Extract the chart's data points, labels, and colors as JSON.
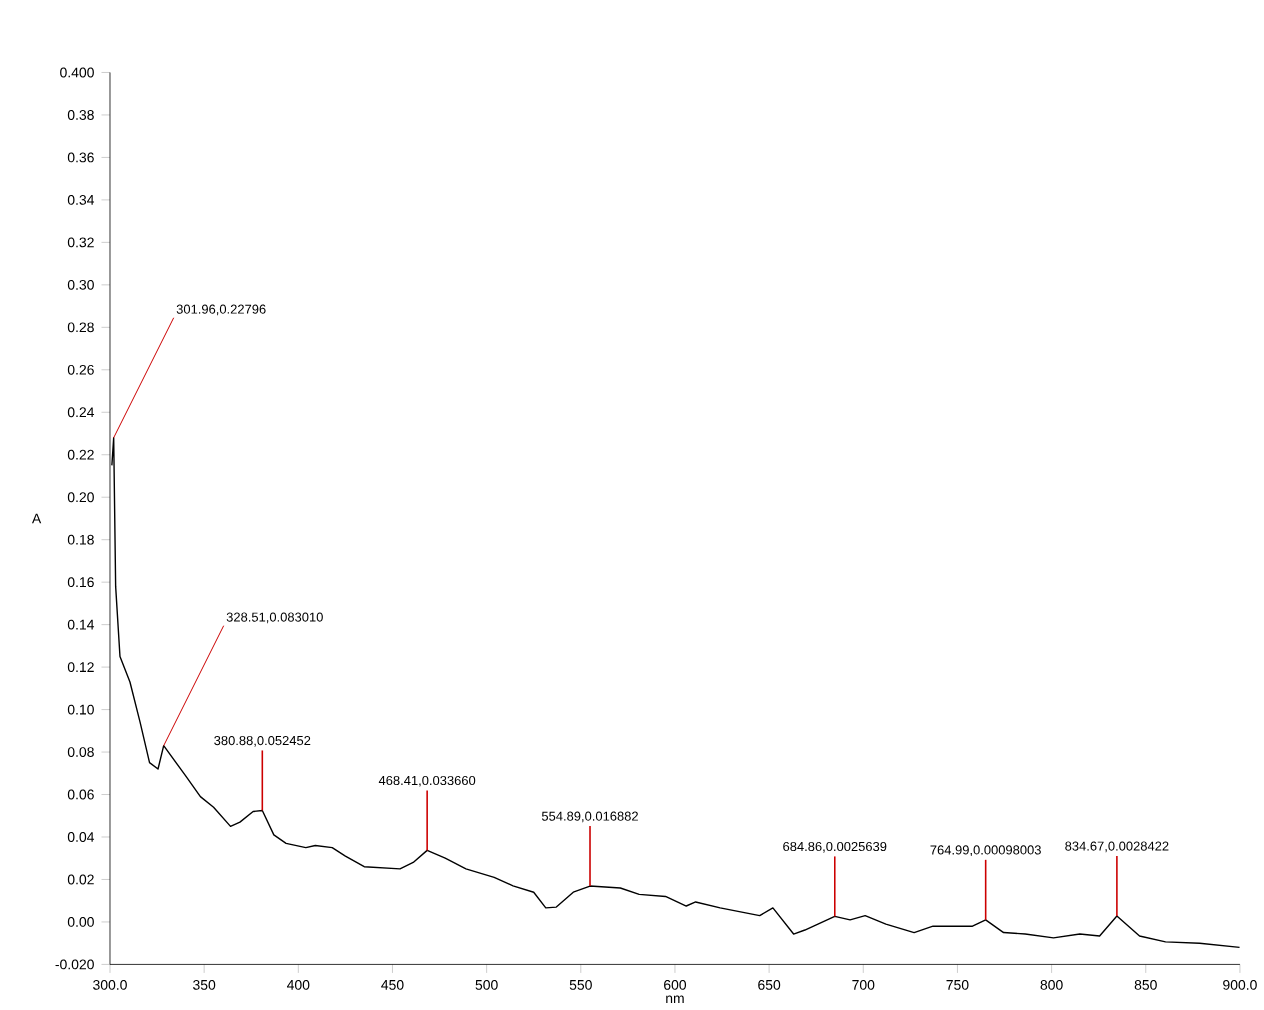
{
  "chart_data": {
    "type": "line",
    "xlabel": "nm",
    "ylabel": "A",
    "x": [
      301,
      301.96,
      303,
      305.3,
      310.6,
      316,
      321,
      325.5,
      328.51,
      340,
      348,
      355,
      364,
      369,
      376,
      380.88,
      387,
      393.5,
      404,
      409,
      418,
      425,
      435,
      454,
      461,
      468.41,
      478,
      489,
      504,
      514,
      525,
      531.4,
      537,
      546,
      554.89,
      571,
      581,
      595,
      606,
      611,
      624,
      645,
      652,
      663,
      669,
      684.86,
      693,
      701,
      712,
      727,
      737,
      751,
      758,
      764.99,
      774.5,
      786,
      801,
      815,
      825.5,
      834.67,
      846.7,
      860.5,
      878.6,
      899.8
    ],
    "series": [
      {
        "color": "#000000",
        "values": [
          0.215,
          0.228,
          0.158,
          0.125,
          0.113,
          0.094,
          0.075,
          0.072,
          0.083,
          0.069,
          0.059,
          0.054,
          0.045,
          0.047,
          0.052,
          0.0525,
          0.041,
          0.037,
          0.035,
          0.036,
          0.035,
          0.031,
          0.026,
          0.025,
          0.028,
          0.0337,
          0.03,
          0.025,
          0.021,
          0.017,
          0.014,
          0.0066,
          0.007,
          0.014,
          0.0169,
          0.016,
          0.013,
          0.012,
          0.0075,
          0.0094,
          0.0066,
          0.003,
          0.0066,
          -0.0057,
          -0.0038,
          0.0026,
          0.001,
          0.003,
          -0.001,
          -0.005,
          -0.002,
          -0.002,
          -0.002,
          0.001,
          -0.005,
          -0.0057,
          -0.0075,
          -0.0057,
          -0.0066,
          0.0028,
          -0.0066,
          -0.0094,
          -0.01,
          -0.012
        ]
      }
    ],
    "xlim": [
      300,
      900
    ],
    "ylim": [
      -0.02,
      0.4
    ],
    "xticks": [
      {
        "value": 300,
        "label": "300.0"
      },
      {
        "value": 350,
        "label": "350"
      },
      {
        "value": 400,
        "label": "400"
      },
      {
        "value": 450,
        "label": "450"
      },
      {
        "value": 500,
        "label": "500"
      },
      {
        "value": 550,
        "label": "550"
      },
      {
        "value": 600,
        "label": "600"
      },
      {
        "value": 650,
        "label": "650"
      },
      {
        "value": 700,
        "label": "700"
      },
      {
        "value": 750,
        "label": "750"
      },
      {
        "value": 800,
        "label": "800"
      },
      {
        "value": 850,
        "label": "850"
      },
      {
        "value": 900,
        "label": "900.0"
      }
    ],
    "yticks": [
      {
        "value": -0.02,
        "label": "-0.020"
      },
      {
        "value": 0,
        "label": "0.00"
      },
      {
        "value": 0.02,
        "label": "0.02"
      },
      {
        "value": 0.04,
        "label": "0.04"
      },
      {
        "value": 0.06,
        "label": "0.06"
      },
      {
        "value": 0.08,
        "label": "0.08"
      },
      {
        "value": 0.1,
        "label": "0.10"
      },
      {
        "value": 0.12,
        "label": "0.12"
      },
      {
        "value": 0.14,
        "label": "0.14"
      },
      {
        "value": 0.16,
        "label": "0.16"
      },
      {
        "value": 0.18,
        "label": "0.18"
      },
      {
        "value": 0.2,
        "label": "0.20"
      },
      {
        "value": 0.22,
        "label": "0.22"
      },
      {
        "value": 0.24,
        "label": "0.24"
      },
      {
        "value": 0.26,
        "label": "0.26"
      },
      {
        "value": 0.28,
        "label": "0.28"
      },
      {
        "value": 0.3,
        "label": "0.30"
      },
      {
        "value": 0.32,
        "label": "0.32"
      },
      {
        "value": 0.34,
        "label": "0.34"
      },
      {
        "value": 0.36,
        "label": "0.36"
      },
      {
        "value": 0.38,
        "label": "0.38"
      },
      {
        "value": 0.4,
        "label": "0.400"
      }
    ],
    "annotations": [
      {
        "text": "301.96,0.22796",
        "x": 301.96,
        "y": 0.228
      },
      {
        "text": "328.51,0.083010",
        "x": 328.51,
        "y": 0.083
      },
      {
        "text": "380.88,0.052452",
        "x": 380.88,
        "y": 0.0525
      },
      {
        "text": "468.41,0.033660",
        "x": 468.41,
        "y": 0.0337
      },
      {
        "text": "554.89,0.016882",
        "x": 554.89,
        "y": 0.0169
      },
      {
        "text": "684.86,0.0025639",
        "x": 684.86,
        "y": 0.0026
      },
      {
        "text": "764.99,0.00098003",
        "x": 764.99,
        "y": 0.001
      },
      {
        "text": "834.67,0.0028422",
        "x": 834.67,
        "y": 0.0028
      }
    ],
    "grid": false,
    "marker": "none",
    "line_style": "solid"
  }
}
